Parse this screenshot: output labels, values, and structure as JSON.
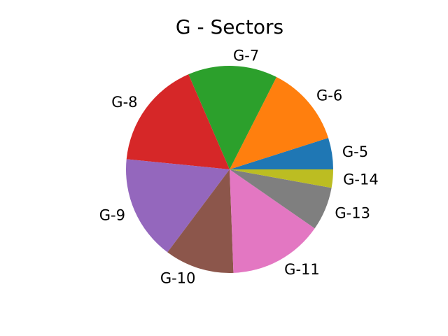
{
  "chart_data": {
    "type": "pie",
    "title": "G - Sectors",
    "start_angle_deg": 0,
    "direction": "counterclockwise",
    "slices": [
      {
        "label": "G-5",
        "value": 5.0,
        "color": "#1f77b4"
      },
      {
        "label": "G-6",
        "value": 12.8,
        "color": "#ff7f0e"
      },
      {
        "label": "G-7",
        "value": 14.2,
        "color": "#2ca02c"
      },
      {
        "label": "G-8",
        "value": 17.2,
        "color": "#d62728"
      },
      {
        "label": "G-9",
        "value": 16.6,
        "color": "#9467bd"
      },
      {
        "label": "G-10",
        "value": 11.0,
        "color": "#8c564b"
      },
      {
        "label": "G-11",
        "value": 15.0,
        "color": "#e377c2"
      },
      {
        "label": "G-13",
        "value": 6.9,
        "color": "#7f7f7f"
      },
      {
        "label": "G-14",
        "value": 2.9,
        "color": "#bcbd22"
      }
    ]
  }
}
